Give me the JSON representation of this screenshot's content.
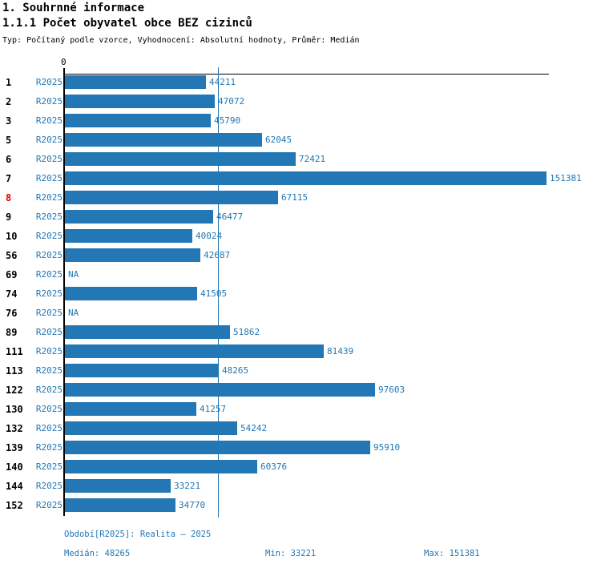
{
  "header": {
    "title": "1. Souhrnné informace",
    "subtitle": "1.1.1 Počet obyvatel obce BEZ cizinců",
    "meta": "Typ: Počítaný podle vzorce, Vyhodnocení: Absolutní hodnoty, Průměr: Medián"
  },
  "chart_data": {
    "type": "bar",
    "orientation": "horizontal",
    "title": "1.1.1 Počet obyvatel obce BEZ cizinců",
    "x_axis": {
      "zero_label": "0",
      "max": 151381
    },
    "median_value": 48265,
    "na_label": "NA",
    "categories": [
      "1",
      "2",
      "3",
      "5",
      "6",
      "7",
      "8",
      "9",
      "10",
      "56",
      "69",
      "74",
      "76",
      "89",
      "111",
      "113",
      "122",
      "130",
      "132",
      "139",
      "140",
      "144",
      "152"
    ],
    "rows": [
      {
        "id": "1",
        "series": "R2025",
        "value": 44211,
        "highlight": false
      },
      {
        "id": "2",
        "series": "R2025",
        "value": 47072,
        "highlight": false
      },
      {
        "id": "3",
        "series": "R2025",
        "value": 45790,
        "highlight": false
      },
      {
        "id": "5",
        "series": "R2025",
        "value": 62045,
        "highlight": false
      },
      {
        "id": "6",
        "series": "R2025",
        "value": 72421,
        "highlight": false
      },
      {
        "id": "7",
        "series": "R2025",
        "value": 151381,
        "highlight": false
      },
      {
        "id": "8",
        "series": "R2025",
        "value": 67115,
        "highlight": true
      },
      {
        "id": "9",
        "series": "R2025",
        "value": 46477,
        "highlight": false
      },
      {
        "id": "10",
        "series": "R2025",
        "value": 40024,
        "highlight": false
      },
      {
        "id": "56",
        "series": "R2025",
        "value": 42687,
        "highlight": false
      },
      {
        "id": "69",
        "series": "R2025",
        "value": null,
        "highlight": false
      },
      {
        "id": "74",
        "series": "R2025",
        "value": 41505,
        "highlight": false
      },
      {
        "id": "76",
        "series": "R2025",
        "value": null,
        "highlight": false
      },
      {
        "id": "89",
        "series": "R2025",
        "value": 51862,
        "highlight": false
      },
      {
        "id": "111",
        "series": "R2025",
        "value": 81439,
        "highlight": false
      },
      {
        "id": "113",
        "series": "R2025",
        "value": 48265,
        "highlight": false
      },
      {
        "id": "122",
        "series": "R2025",
        "value": 97603,
        "highlight": false
      },
      {
        "id": "130",
        "series": "R2025",
        "value": 41257,
        "highlight": false
      },
      {
        "id": "132",
        "series": "R2025",
        "value": 54242,
        "highlight": false
      },
      {
        "id": "139",
        "series": "R2025",
        "value": 95910,
        "highlight": false
      },
      {
        "id": "140",
        "series": "R2025",
        "value": 60376,
        "highlight": false
      },
      {
        "id": "144",
        "series": "R2025",
        "value": 33221,
        "highlight": false
      },
      {
        "id": "152",
        "series": "R2025",
        "value": 34770,
        "highlight": false
      }
    ]
  },
  "footer": {
    "period": "Období[R2025]: Realita – 2025",
    "median": "Medián: 48265",
    "min": "Min: 33221",
    "max": "Max: 151381"
  },
  "colors": {
    "bar": "#2277b4",
    "blue_text": "#2277b4",
    "highlight_red": "#dd0000",
    "axis_black": "#000000"
  }
}
